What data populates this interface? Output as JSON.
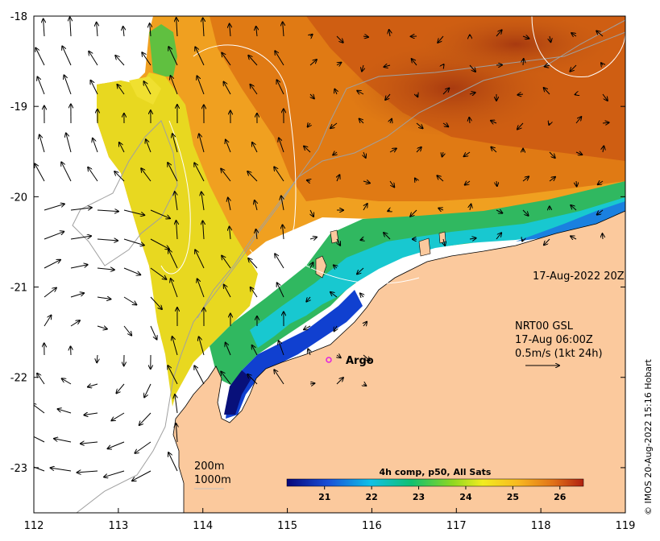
{
  "map": {
    "x_ticks": [
      "112",
      "113",
      "114",
      "115",
      "116",
      "117",
      "118",
      "119"
    ],
    "y_ticks": [
      "-18",
      "-19",
      "-20",
      "-21",
      "-22",
      "-23"
    ],
    "lon_range": [
      112,
      119
    ],
    "lat_range": [
      -23.5,
      -18
    ]
  },
  "labels": {
    "date_stamp": "17-Aug-2022 20Z",
    "current_source": "NRT00 GSL",
    "current_time": "17-Aug 06:00Z",
    "current_scale": "0.5m/s (1kt 24h)",
    "argo": "Argo",
    "contour_200": "200m",
    "contour_1000": "1000m",
    "credit": "© IMOS 20-Aug-2022 15:16 Hobart"
  },
  "colorbar": {
    "title": "4h comp, p50, All Sats",
    "ticks": [
      "21",
      "22",
      "23",
      "24",
      "25",
      "26"
    ],
    "range": [
      20.2,
      26.5
    ]
  },
  "colors": {
    "land": "#fbc99d",
    "warm": "#c04a10",
    "cold": "#0a1a9a",
    "argo_marker": "#e020e0"
  }
}
